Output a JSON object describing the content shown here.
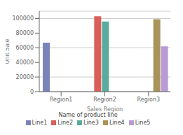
{
  "chart_data": {
    "type": "bar",
    "xlabel": "Sales Region",
    "ylabel": "Unit Sale",
    "categories": [
      "Region1",
      "Region2",
      "Region3"
    ],
    "series": [
      {
        "name": "Line1",
        "color": "#7b84b8",
        "values": [
          67000,
          null,
          null
        ]
      },
      {
        "name": "Line2",
        "color": "#d9605a",
        "values": [
          null,
          103000,
          null
        ]
      },
      {
        "name": "Line3",
        "color": "#5aab9e",
        "values": [
          null,
          96000,
          null
        ]
      },
      {
        "name": "Line4",
        "color": "#a8935a",
        "values": [
          null,
          null,
          99000
        ]
      },
      {
        "name": "Line5",
        "color": "#b89bd4",
        "values": [
          null,
          null,
          62000
        ]
      }
    ],
    "ylim": [
      0,
      110000
    ],
    "yticks": [
      0,
      20000,
      40000,
      60000,
      80000,
      100000
    ],
    "grid": true,
    "legend": "bottom",
    "legend_title": "Name of product line"
  }
}
